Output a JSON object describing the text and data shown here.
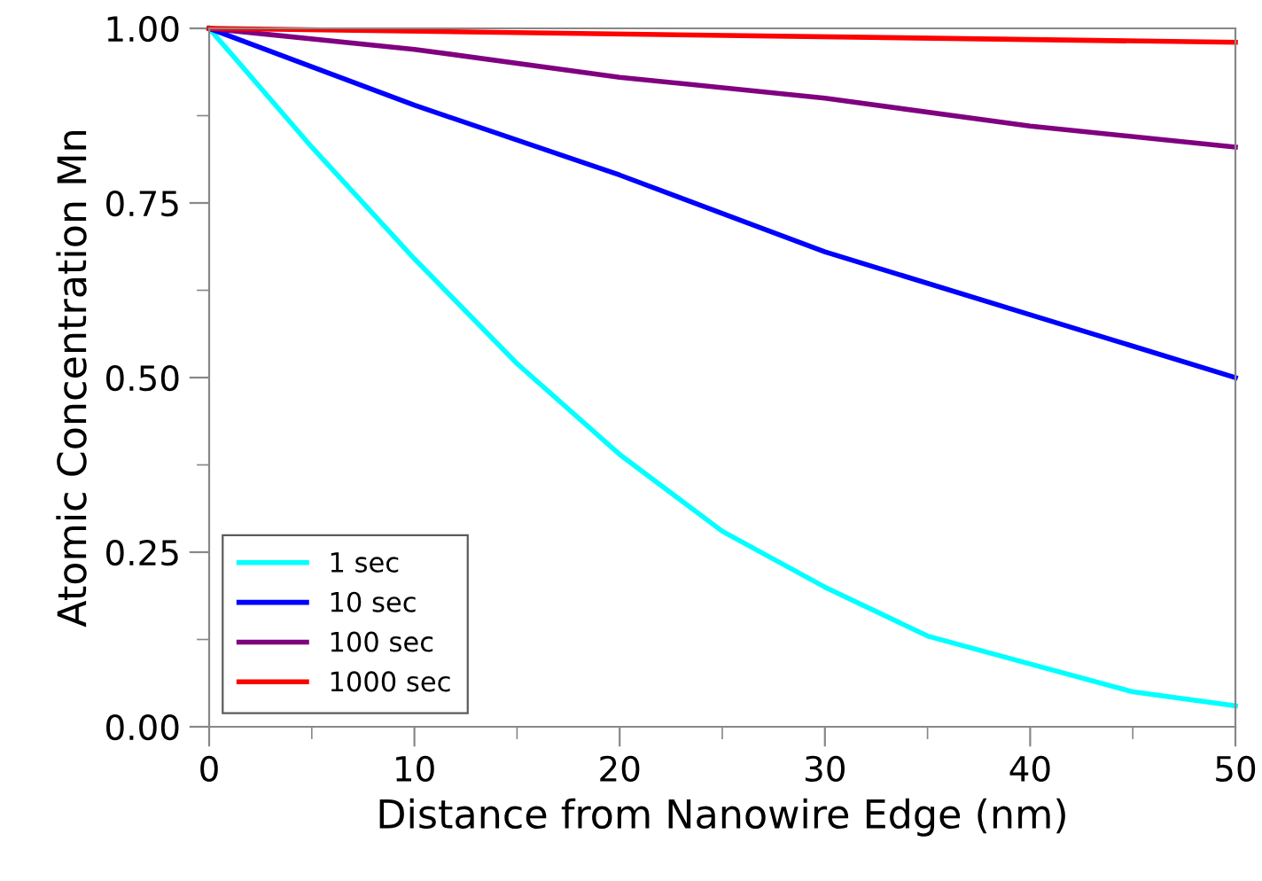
{
  "chart_data": {
    "type": "line",
    "xlabel": "Distance from Nanowire Edge (nm)",
    "ylabel": "Atomic Concentration Mn",
    "xlim": [
      0,
      50
    ],
    "xticks": [
      0,
      10,
      20,
      30,
      40,
      50
    ],
    "ylim": [
      0,
      1
    ],
    "yticks": [
      {
        "value": 0,
        "label": "0.00"
      },
      {
        "value": 0.25,
        "label": "0.25"
      },
      {
        "value": 0.5,
        "label": "0.50"
      },
      {
        "value": 0.75,
        "label": "0.75"
      },
      {
        "value": 1,
        "label": "1.00"
      }
    ],
    "grid": false,
    "legend": "bottom left",
    "marker": "none",
    "line_style": "solid",
    "series": [
      {
        "name": "1 sec",
        "color": "#00ffff",
        "x": [
          0,
          5,
          10,
          15,
          20,
          25,
          30,
          35,
          40,
          45,
          50
        ],
        "values": [
          1.0,
          0.83,
          0.67,
          0.52,
          0.39,
          0.28,
          0.2,
          0.13,
          0.09,
          0.05,
          0.03
        ]
      },
      {
        "name": "10 sec",
        "color": "#0000ff",
        "x": [
          0,
          10,
          20,
          30,
          40,
          50
        ],
        "values": [
          1.0,
          0.89,
          0.79,
          0.68,
          0.59,
          0.5
        ]
      },
      {
        "name": "100 sec",
        "color": "#800080",
        "x": [
          0,
          10,
          20,
          30,
          40,
          50
        ],
        "values": [
          1.0,
          0.97,
          0.93,
          0.9,
          0.86,
          0.83
        ]
      },
      {
        "name": "1000 sec",
        "color": "#ff0000",
        "x": [
          0,
          50
        ],
        "values": [
          1.0,
          0.98
        ]
      }
    ]
  }
}
